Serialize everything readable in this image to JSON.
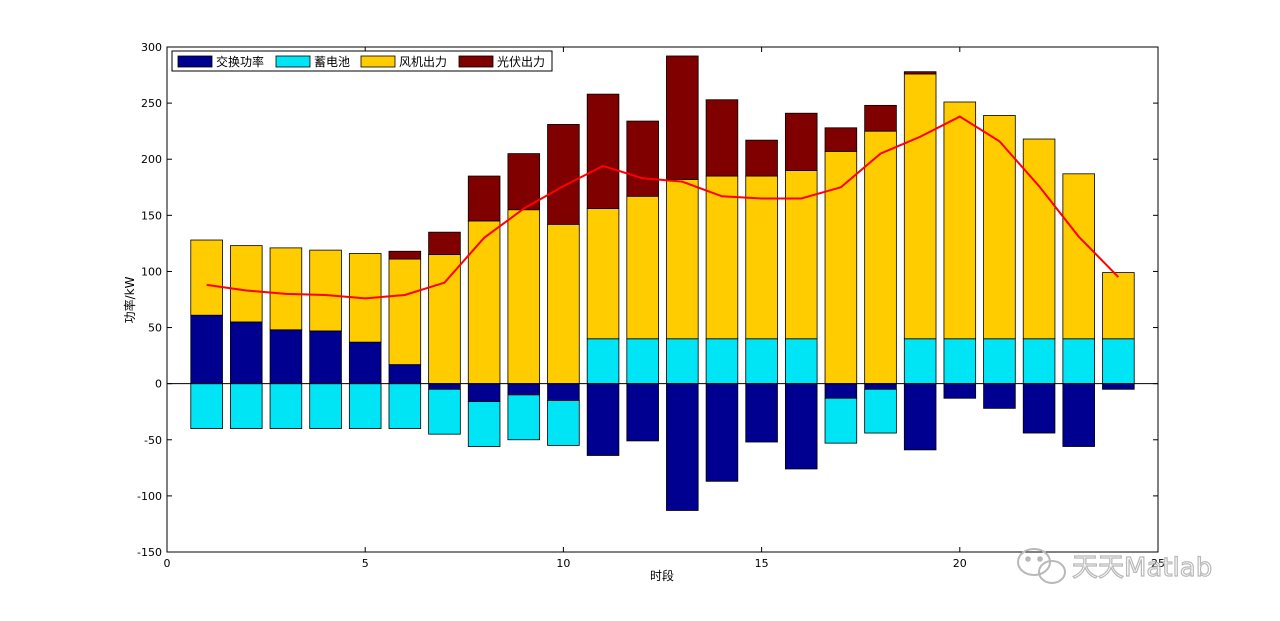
{
  "chart_data": {
    "type": "bar",
    "stacked": true,
    "title": "",
    "xlabel": "时段",
    "ylabel": "功率/kW",
    "xlim": [
      0,
      25
    ],
    "ylim": [
      -150,
      300
    ],
    "xticks": [
      0,
      5,
      10,
      15,
      20,
      25
    ],
    "yticks": [
      -150,
      -100,
      -50,
      0,
      50,
      100,
      150,
      200,
      250,
      300
    ],
    "grid": false,
    "legend_position": "top-left",
    "x": [
      1,
      2,
      3,
      4,
      5,
      6,
      7,
      8,
      9,
      10,
      11,
      12,
      13,
      14,
      15,
      16,
      17,
      18,
      19,
      20,
      21,
      22,
      23,
      24
    ],
    "series": [
      {
        "name": "交换功率",
        "color": "#000090",
        "values": [
          61,
          55,
          48,
          47,
          37,
          17,
          -5,
          -16,
          -10,
          -15,
          -64,
          -51,
          -113,
          -87,
          -52,
          -76,
          -13,
          -5,
          -59,
          -13,
          -22,
          -44,
          -56,
          -5
        ]
      },
      {
        "name": "蓄电池",
        "color": "#00e5f5",
        "values": [
          -40,
          -40,
          -40,
          -40,
          -40,
          -40,
          -40,
          -40,
          -40,
          -40,
          40,
          40,
          40,
          40,
          40,
          40,
          -40,
          -39,
          40,
          40,
          40,
          40,
          40,
          40
        ]
      },
      {
        "name": "风机出力",
        "color": "#ffcc00",
        "values": [
          67,
          68,
          73,
          72,
          79,
          94,
          115,
          145,
          155,
          142,
          116,
          127,
          142,
          145,
          145,
          150,
          207,
          225,
          236,
          211,
          199,
          178,
          147,
          59
        ]
      },
      {
        "name": "光伏出力",
        "color": "#800000",
        "values": [
          0,
          0,
          0,
          0,
          0,
          7,
          20,
          40,
          50,
          89,
          102,
          67,
          110,
          68,
          32,
          51,
          21,
          23,
          2,
          0,
          0,
          0,
          0,
          0
        ]
      }
    ],
    "line": {
      "color": "#ff0000",
      "values": [
        88,
        83,
        80,
        79,
        76,
        79,
        90,
        130,
        156,
        176,
        194,
        183,
        180,
        167,
        165,
        165,
        175,
        205,
        220,
        238,
        216,
        176,
        131,
        95
      ]
    }
  },
  "watermark": {
    "text": "天天Matlab",
    "icon": "wechat-icon"
  }
}
